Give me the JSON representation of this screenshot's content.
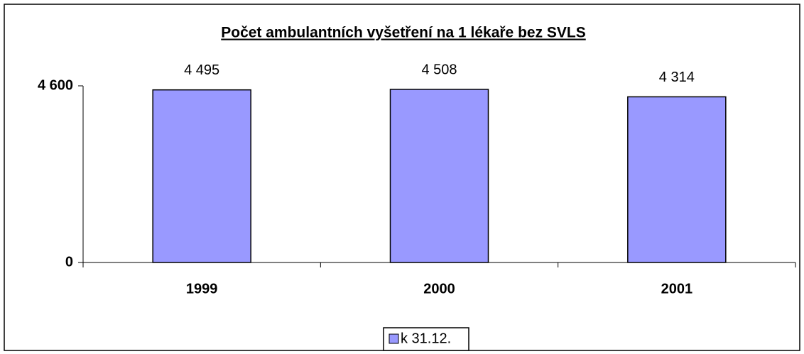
{
  "chart_data": {
    "type": "bar",
    "title": "Počet ambulantních vyšetření na 1 lékaře bez SVLS",
    "categories": [
      "1999",
      "2000",
      "2001"
    ],
    "series": [
      {
        "name": "k 31.12.",
        "color": "#9999ff",
        "values": [
          4495,
          4508,
          4314
        ],
        "value_labels": [
          "4 495",
          "4 508",
          "4 314"
        ]
      }
    ],
    "ylim": [
      0,
      4600
    ],
    "yticks": [
      0,
      {
        "value": 4600,
        "label": "4 600"
      }
    ],
    "grid": false,
    "legend": "bottom"
  }
}
